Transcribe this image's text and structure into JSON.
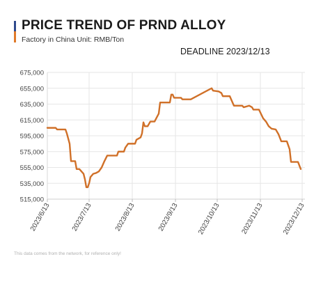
{
  "header": {
    "title": "PRICE TREND OF PRND ALLOY",
    "subtitle": "Factory in China    Unit: RMB/Ton",
    "deadline": "DEADLINE 2023/12/13",
    "accent_colors": [
      "#2f4a8c",
      "#e07a2a"
    ]
  },
  "footer": {
    "note": "This data comes from the network, for reference only!"
  },
  "chart_data": {
    "type": "line",
    "title": "PRICE TREND OF PRND ALLOY",
    "xlabel": "",
    "ylabel": "",
    "line_color": "#d07028",
    "grid": true,
    "ylim": [
      515000,
      675000
    ],
    "xlim": [
      "2023-06-13",
      "2023-12-13"
    ],
    "y_ticks": [
      515000,
      535000,
      555000,
      575000,
      595000,
      615000,
      635000,
      655000,
      675000
    ],
    "y_tick_labels": [
      "515,000",
      "535,000",
      "555,000",
      "575,000",
      "595,000",
      "615,000",
      "635,000",
      "655,000",
      "675,000"
    ],
    "x_ticks": [
      "2023-06-13",
      "2023-07-13",
      "2023-08-13",
      "2023-09-13",
      "2023-10-13",
      "2023-11-13",
      "2023-12-13"
    ],
    "x_tick_labels": [
      "2023/6/13",
      "2023/7/13",
      "2023/8/13",
      "2023/9/13",
      "2023/10/13",
      "2023/11/13",
      "2023/12/13"
    ],
    "series": [
      {
        "points": [
          [
            "2023-06-13",
            605000
          ],
          [
            "2023-06-19",
            605000
          ],
          [
            "2023-06-20",
            603000
          ],
          [
            "2023-06-26",
            603000
          ],
          [
            "2023-06-27",
            598000
          ],
          [
            "2023-06-29",
            585000
          ],
          [
            "2023-06-30",
            563000
          ],
          [
            "2023-07-03",
            563000
          ],
          [
            "2023-07-04",
            553000
          ],
          [
            "2023-07-06",
            553000
          ],
          [
            "2023-07-09",
            547000
          ],
          [
            "2023-07-10",
            540000
          ],
          [
            "2023-07-11",
            530000
          ],
          [
            "2023-07-12",
            530000
          ],
          [
            "2023-07-13",
            535000
          ],
          [
            "2023-07-14",
            543000
          ],
          [
            "2023-07-16",
            547000
          ],
          [
            "2023-07-18",
            548000
          ],
          [
            "2023-07-20",
            550000
          ],
          [
            "2023-07-22",
            555000
          ],
          [
            "2023-07-24",
            563000
          ],
          [
            "2023-07-26",
            570000
          ],
          [
            "2023-08-02",
            570000
          ],
          [
            "2023-08-03",
            575000
          ],
          [
            "2023-08-07",
            575000
          ],
          [
            "2023-08-08",
            580000
          ],
          [
            "2023-08-10",
            585000
          ],
          [
            "2023-08-15",
            585000
          ],
          [
            "2023-08-16",
            590000
          ],
          [
            "2023-08-19",
            593000
          ],
          [
            "2023-08-20",
            598000
          ],
          [
            "2023-08-21",
            612000
          ],
          [
            "2023-08-22",
            607000
          ],
          [
            "2023-08-24",
            607000
          ],
          [
            "2023-08-26",
            613000
          ],
          [
            "2023-08-29",
            613000
          ],
          [
            "2023-09-01",
            623000
          ],
          [
            "2023-09-02",
            637000
          ],
          [
            "2023-09-09",
            637000
          ],
          [
            "2023-09-10",
            647000
          ],
          [
            "2023-09-11",
            647000
          ],
          [
            "2023-09-12",
            643000
          ],
          [
            "2023-09-17",
            643000
          ],
          [
            "2023-09-18",
            641000
          ],
          [
            "2023-09-24",
            641000
          ],
          [
            "2023-10-09",
            655000
          ],
          [
            "2023-10-10",
            652000
          ],
          [
            "2023-10-14",
            651000
          ],
          [
            "2023-10-16",
            649000
          ],
          [
            "2023-10-17",
            645000
          ],
          [
            "2023-10-22",
            645000
          ],
          [
            "2023-10-24",
            637000
          ],
          [
            "2023-10-25",
            633000
          ],
          [
            "2023-10-31",
            633000
          ],
          [
            "2023-11-01",
            631000
          ],
          [
            "2023-11-05",
            633000
          ],
          [
            "2023-11-07",
            631000
          ],
          [
            "2023-11-08",
            628000
          ],
          [
            "2023-11-12",
            628000
          ],
          [
            "2023-11-15",
            617000
          ],
          [
            "2023-11-17",
            613000
          ],
          [
            "2023-11-19",
            607000
          ],
          [
            "2023-11-21",
            604000
          ],
          [
            "2023-11-24",
            603000
          ],
          [
            "2023-11-26",
            597000
          ],
          [
            "2023-11-28",
            588000
          ],
          [
            "2023-12-02",
            588000
          ],
          [
            "2023-12-04",
            578000
          ],
          [
            "2023-12-05",
            562000
          ],
          [
            "2023-12-10",
            562000
          ],
          [
            "2023-12-12",
            553000
          ]
        ]
      }
    ]
  }
}
